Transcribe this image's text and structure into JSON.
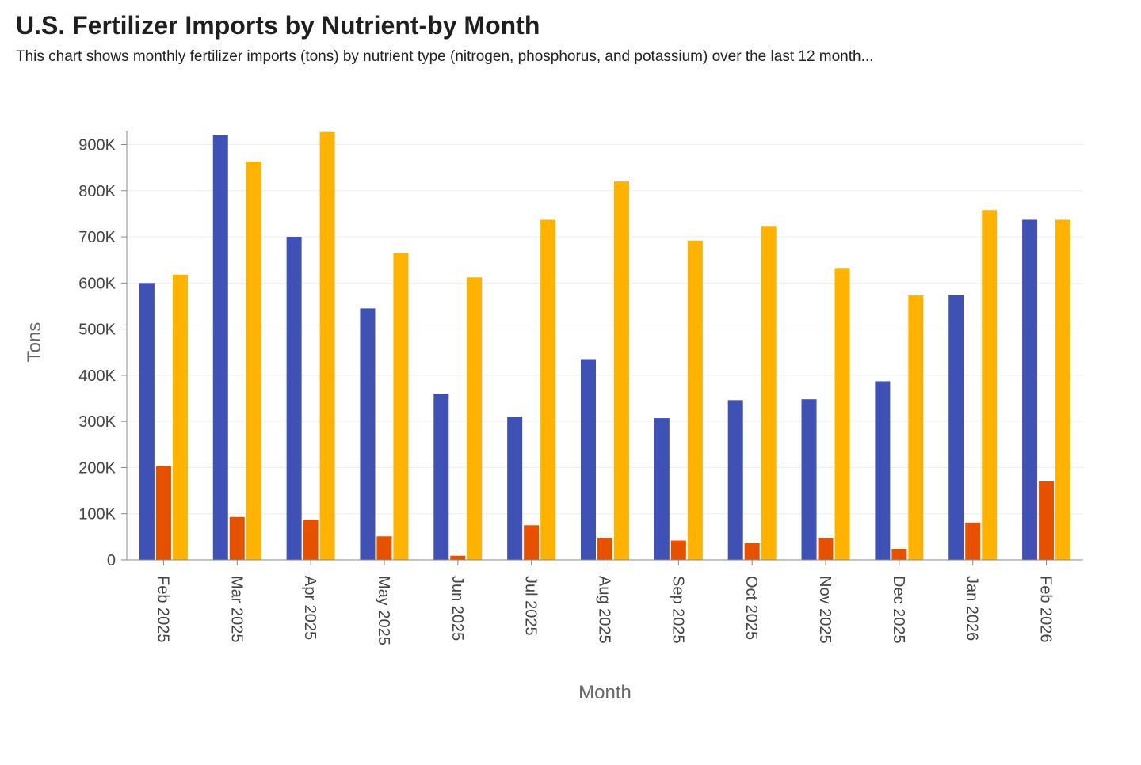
{
  "header": {
    "title": "U.S. Fertilizer Imports by Nutrient-by Month",
    "subtitle": "This chart shows monthly fertilizer imports (tons) by nutrient type (nitrogen, phosphorus, and potassium) over the last 12 month..."
  },
  "colors": {
    "nitrogen": "#3f51b5",
    "phosphorus": "#e65100",
    "potassium": "#ffb300",
    "grid": "#eeeeee",
    "axis": "#888888"
  },
  "chart_data": {
    "type": "bar",
    "title": "U.S. Fertilizer Imports by Nutrient-by Month",
    "xlabel": "Month",
    "ylabel": "Tons",
    "ylim": [
      0,
      930000
    ],
    "grid": true,
    "yticks": [
      {
        "value": 0,
        "label": "0"
      },
      {
        "value": 100000,
        "label": "100K"
      },
      {
        "value": 200000,
        "label": "200K"
      },
      {
        "value": 300000,
        "label": "300K"
      },
      {
        "value": 400000,
        "label": "400K"
      },
      {
        "value": 500000,
        "label": "500K"
      },
      {
        "value": 600000,
        "label": "600K"
      },
      {
        "value": 700000,
        "label": "700K"
      },
      {
        "value": 800000,
        "label": "800K"
      },
      {
        "value": 900000,
        "label": "900K"
      }
    ],
    "categories": [
      "Feb 2025",
      "Mar 2025",
      "Apr 2025",
      "May 2025",
      "Jun 2025",
      "Jul 2025",
      "Aug 2025",
      "Sep 2025",
      "Oct 2025",
      "Nov 2025",
      "Dec 2025",
      "Jan 2026",
      "Feb 2026"
    ],
    "series": [
      {
        "name": "Nitrogen",
        "key": "nitrogen",
        "values": [
          600000,
          920000,
          700000,
          545000,
          360000,
          310000,
          435000,
          307000,
          346000,
          348000,
          387000,
          574000,
          737000
        ]
      },
      {
        "name": "Phosphorus",
        "key": "phosphorus",
        "values": [
          203000,
          93000,
          87000,
          51000,
          9000,
          75000,
          48000,
          42000,
          36000,
          48000,
          24000,
          81000,
          170000
        ]
      },
      {
        "name": "Potassium",
        "key": "potassium",
        "values": [
          618000,
          863000,
          927000,
          665000,
          612000,
          737000,
          820000,
          692000,
          722000,
          631000,
          573000,
          758000,
          737000
        ]
      }
    ]
  }
}
